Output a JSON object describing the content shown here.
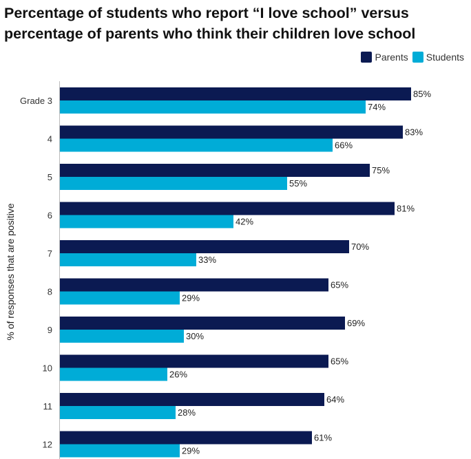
{
  "title": "Percentage of students who report “I love school” versus percentage of parents who think their children love school",
  "colors": {
    "parents": "#0b1a52",
    "students": "#00acd7",
    "axis": "#bbbbbb",
    "label": "#222222"
  },
  "chart_data": {
    "type": "bar",
    "orientation": "horizontal",
    "title": "Percentage of students who report “I love school” versus percentage of parents who think their children love school",
    "ylabel": "% of responses that are positive",
    "xlabel": "",
    "categories": [
      "Grade 3",
      "4",
      "5",
      "6",
      "7",
      "8",
      "9",
      "10",
      "11",
      "12"
    ],
    "series": [
      {
        "name": "Parents",
        "values": [
          85,
          83,
          75,
          81,
          70,
          65,
          69,
          65,
          64,
          61
        ],
        "labels": [
          "85%",
          "83%",
          "75%",
          "81%",
          "70%",
          "65%",
          "69%",
          "65%",
          "64%",
          "61%"
        ]
      },
      {
        "name": "Students",
        "values": [
          74,
          66,
          55,
          42,
          33,
          29,
          30,
          26,
          28,
          29
        ],
        "labels": [
          "74%",
          "66%",
          "55%",
          "42%",
          "33%",
          "29%",
          "30%",
          "26%",
          "28%",
          "29%"
        ]
      }
    ],
    "xlim": [
      0,
      100
    ],
    "legend": "top-right"
  }
}
